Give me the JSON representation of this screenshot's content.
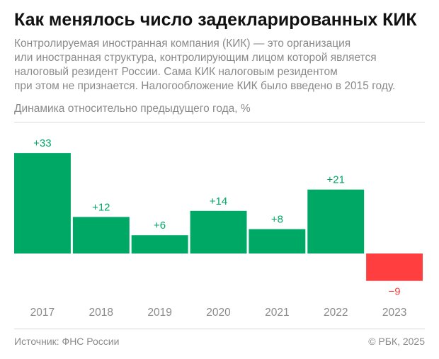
{
  "header": {
    "title": "Как менялось число задекларированных КИК",
    "subtitle_lines": [
      "Контролируемая иностранная компания (КИК) — это организация",
      "или иностранная структура, контролирующим лицом которой является",
      "налоговый резидент России. Сама КИК налоговым резидентом",
      "при этом не признается. Налогообложение КИК было введено в 2015 году."
    ],
    "unit_label": "Динамика относительно предыдущего года, %"
  },
  "chart_data": {
    "type": "bar",
    "categories": [
      "2017",
      "2018",
      "2019",
      "2020",
      "2021",
      "2022",
      "2023"
    ],
    "values": [
      33,
      12,
      6,
      14,
      8,
      21,
      -9
    ],
    "value_labels": [
      "+33",
      "+12",
      "+6",
      "+14",
      "+8",
      "+21",
      "−9"
    ],
    "ylabel": "Динамика относительно предыдущего года, %",
    "ylim": [
      -9,
      33
    ],
    "grid": false,
    "legend": "none",
    "colors": {
      "positive": "#00a865",
      "negative": "#ff3f3f"
    }
  },
  "footer": {
    "source": "Источник: ФНС России",
    "copyright": "© РБК, 2025"
  }
}
